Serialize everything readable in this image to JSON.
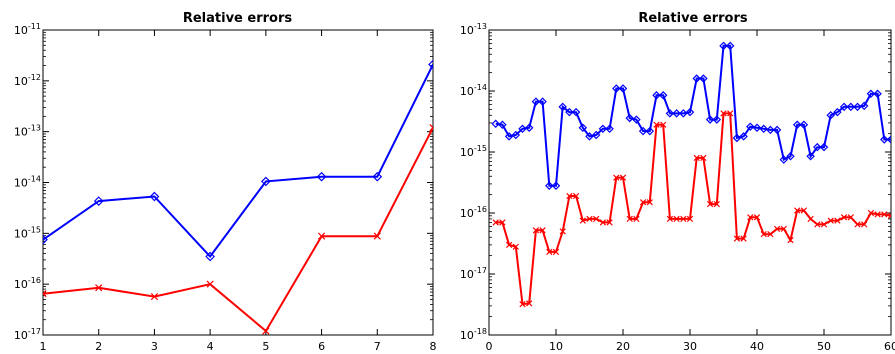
{
  "chart_data": [
    {
      "type": "line",
      "title": "Relative errors",
      "xlabel": "",
      "ylabel": "",
      "yscale": "log",
      "xlim": [
        1,
        8
      ],
      "ylim": [
        1e-17,
        1e-11
      ],
      "x_ticks": [
        1,
        2,
        3,
        4,
        5,
        6,
        7,
        8
      ],
      "y_ticks": [
        {
          "base": "10",
          "exp": "-11",
          "value": 1e-11
        },
        {
          "base": "10",
          "exp": "-12",
          "value": 1e-12
        },
        {
          "base": "10",
          "exp": "-13",
          "value": 1e-13
        },
        {
          "base": "10",
          "exp": "-14",
          "value": 1e-14
        },
        {
          "base": "10",
          "exp": "-15",
          "value": 1e-15
        },
        {
          "base": "10",
          "exp": "-16",
          "value": 1e-16
        },
        {
          "base": "10",
          "exp": "-17",
          "value": 1e-17
        }
      ],
      "grid": false,
      "x": [
        1,
        2,
        3,
        4,
        5,
        6,
        7,
        8
      ],
      "series": [
        {
          "color": "#0000ff",
          "marker": "diamond",
          "values": [
            7.5e-16,
            4.3e-15,
            5.3e-15,
            3.5e-16,
            1.05e-14,
            1.3e-14,
            1.3e-14,
            2.1e-12
          ]
        },
        {
          "color": "#ff0000",
          "marker": "x",
          "values": [
            6.5e-17,
            8.5e-17,
            5.7e-17,
            1e-16,
            1.2e-17,
            8.8e-16,
            8.8e-16,
            1.2e-13
          ]
        }
      ]
    },
    {
      "type": "line",
      "title": "Relative errors",
      "xlabel": "",
      "ylabel": "",
      "yscale": "log",
      "xlim": [
        0,
        60
      ],
      "ylim": [
        1e-18,
        1e-13
      ],
      "x_ticks": [
        0,
        10,
        20,
        30,
        40,
        50,
        60
      ],
      "y_ticks": [
        {
          "base": "10",
          "exp": "-13",
          "value": 1e-13
        },
        {
          "base": "10",
          "exp": "-14",
          "value": 1e-14
        },
        {
          "base": "10",
          "exp": "-15",
          "value": 1e-15
        },
        {
          "base": "10",
          "exp": "-16",
          "value": 1e-16
        },
        {
          "base": "10",
          "exp": "-17",
          "value": 1e-17
        },
        {
          "base": "10",
          "exp": "-18",
          "value": 1e-18
        }
      ],
      "grid": false,
      "x": [
        1,
        2,
        3,
        4,
        5,
        6,
        7,
        8,
        9,
        10,
        11,
        12,
        13,
        14,
        15,
        16,
        17,
        18,
        19,
        20,
        21,
        22,
        23,
        24,
        25,
        26,
        27,
        28,
        29,
        30,
        31,
        32,
        33,
        34,
        35,
        36,
        37,
        38,
        39,
        40,
        41,
        42,
        43,
        44,
        45,
        46,
        47,
        48,
        49,
        50,
        51,
        52,
        53,
        54,
        55,
        56,
        57,
        58,
        59,
        60
      ],
      "series": [
        {
          "color": "#0000ff",
          "marker": "diamond",
          "values": [
            2.9e-15,
            2.8e-15,
            1.8e-15,
            1.9e-15,
            2.4e-15,
            2.5e-15,
            6.7e-15,
            6.7e-15,
            2.8e-16,
            2.8e-16,
            5.5e-15,
            4.5e-15,
            4.5e-15,
            2.5e-15,
            1.8e-15,
            1.9e-15,
            2.4e-15,
            2.4e-15,
            1.1e-14,
            1.1e-14,
            3.6e-15,
            3.4e-15,
            2.2e-15,
            2.2e-15,
            8.5e-15,
            8.5e-15,
            4.3e-15,
            4.3e-15,
            4.3e-15,
            4.5e-15,
            1.6e-14,
            1.6e-14,
            3.4e-15,
            3.4e-15,
            5.5e-14,
            5.5e-14,
            1.7e-15,
            1.8e-15,
            2.6e-15,
            2.5e-15,
            2.4e-15,
            2.3e-15,
            2.3e-15,
            7.5e-16,
            8.5e-16,
            2.8e-15,
            2.8e-15,
            8.5e-16,
            1.2e-15,
            1.2e-15,
            4e-15,
            4.5e-15,
            5.5e-15,
            5.5e-15,
            5.5e-15,
            5.7e-15,
            9e-15,
            9e-15,
            1.6e-15,
            1.6e-15
          ]
        },
        {
          "color": "#ff0000",
          "marker": "x",
          "values": [
            7e-17,
            7e-17,
            3e-17,
            2.8e-17,
            3.2e-18,
            3.3e-18,
            5.2e-17,
            5.2e-17,
            2.3e-17,
            2.3e-17,
            5e-17,
            1.9e-16,
            1.9e-16,
            7.5e-17,
            8e-17,
            8e-17,
            7e-17,
            7e-17,
            3.8e-16,
            3.8e-16,
            8e-17,
            8e-17,
            1.5e-16,
            1.5e-16,
            2.8e-15,
            2.8e-15,
            8e-17,
            8e-17,
            8e-17,
            8e-17,
            8e-16,
            8e-16,
            1.4e-16,
            1.4e-16,
            4.3e-15,
            4.3e-15,
            3.8e-17,
            3.8e-17,
            8.5e-17,
            8.5e-17,
            4.5e-17,
            4.5e-17,
            5.5e-17,
            5.5e-17,
            3.6e-17,
            1.1e-16,
            1.1e-16,
            8e-17,
            6.5e-17,
            6.5e-17,
            7.5e-17,
            7.5e-17,
            8.5e-17,
            8.5e-17,
            6.5e-17,
            6.5e-17,
            1e-16,
            9.5e-17,
            9.5e-17,
            9e-17
          ]
        }
      ]
    }
  ]
}
